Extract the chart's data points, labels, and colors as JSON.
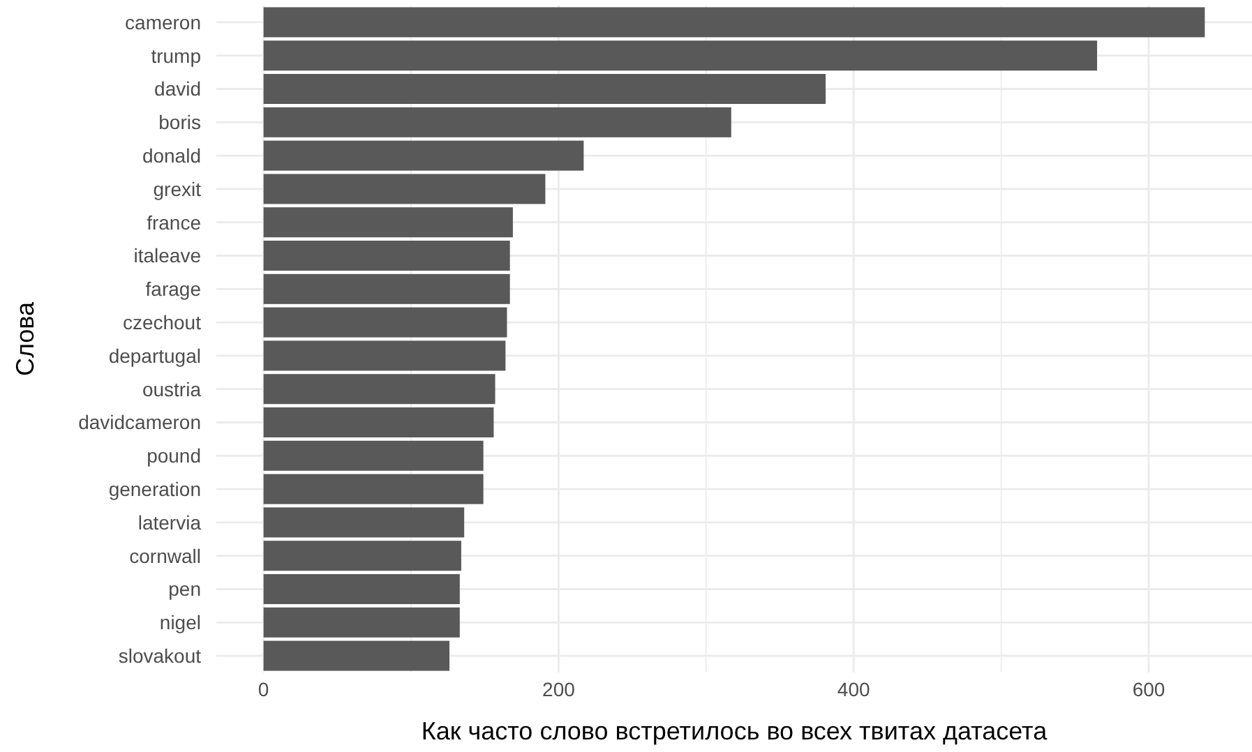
{
  "chart_data": {
    "type": "bar",
    "orientation": "horizontal",
    "xlabel": "Как часто слово встретилось во всех твитах датасета",
    "ylabel": "Слова",
    "categories": [
      "cameron",
      "trump",
      "david",
      "boris",
      "donald",
      "grexit",
      "france",
      "italeave",
      "farage",
      "czechout",
      "departugal",
      "oustria",
      "davidcameron",
      "pound",
      "generation",
      "latervia",
      "cornwall",
      "pen",
      "nigel",
      "slovakout"
    ],
    "values": [
      638,
      565,
      381,
      317,
      217,
      191,
      169,
      167,
      167,
      165,
      164,
      157,
      156,
      149,
      149,
      136,
      134,
      133,
      133,
      126
    ],
    "color": "#595959",
    "xlim": [
      -32,
      670
    ],
    "xticks": [
      0,
      {
        "value": 100,
        "label": null
      },
      200,
      {
        "value": 300,
        "label": null
      },
      400,
      {
        "value": 500,
        "label": null
      },
      600
    ],
    "grid": true
  }
}
